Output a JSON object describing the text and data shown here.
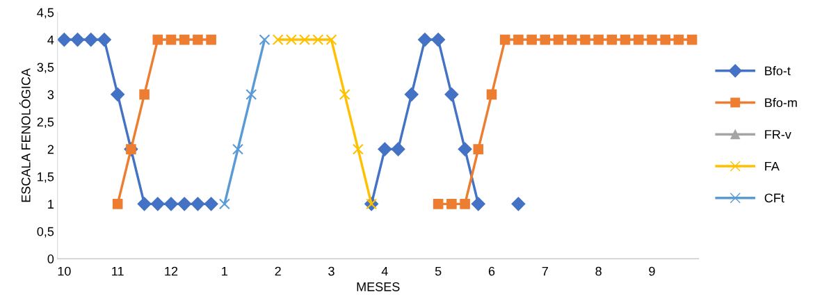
{
  "chart_data": {
    "type": "line",
    "xlabel": "MESES",
    "ylabel": "ESCALA FENOLÓGICA",
    "categories": [
      "10",
      null,
      null,
      null,
      "11",
      null,
      null,
      null,
      "12",
      null,
      null,
      null,
      "1",
      null,
      null,
      null,
      "2",
      null,
      null,
      null,
      "3",
      null,
      null,
      null,
      "4",
      null,
      null,
      null,
      "5",
      null,
      null,
      null,
      "6",
      null,
      null,
      null,
      "7",
      null,
      null,
      null,
      "8",
      null,
      null,
      null,
      "9",
      null,
      null,
      null
    ],
    "series": [
      {
        "name": "Bfo-t",
        "color": "#4472c4",
        "marker": "diamond",
        "values": [
          4,
          4,
          4,
          4,
          3,
          2,
          1,
          1,
          1,
          1,
          1,
          1,
          null,
          null,
          null,
          null,
          null,
          null,
          null,
          null,
          null,
          null,
          null,
          1,
          2,
          2,
          3,
          4,
          4,
          3,
          2,
          1,
          null,
          null,
          1,
          null,
          null,
          null,
          null,
          null,
          null,
          null,
          null,
          null,
          null,
          null,
          null,
          null
        ]
      },
      {
        "name": "Bfo-m",
        "color": "#ed7d31",
        "marker": "square",
        "values": [
          null,
          null,
          null,
          null,
          1,
          2,
          3,
          4,
          4,
          4,
          4,
          4,
          null,
          null,
          null,
          null,
          null,
          null,
          null,
          null,
          null,
          null,
          null,
          null,
          null,
          null,
          null,
          null,
          1,
          1,
          1,
          2,
          3,
          4,
          4,
          4,
          4,
          4,
          4,
          4,
          4,
          4,
          4,
          4,
          4,
          4,
          4,
          4
        ]
      },
      {
        "name": "FR-v",
        "color": "#a5a5a5",
        "marker": "triangle",
        "values": [
          null,
          null,
          null,
          null,
          null,
          null,
          null,
          null,
          null,
          null,
          null,
          null,
          null,
          null,
          null,
          null,
          null,
          null,
          null,
          null,
          null,
          null,
          null,
          null,
          null,
          null,
          null,
          null,
          null,
          null,
          null,
          null,
          null,
          null,
          null,
          null,
          null,
          null,
          null,
          null,
          null,
          null,
          null,
          null,
          null,
          null,
          null,
          null
        ]
      },
      {
        "name": "FA",
        "color": "#ffc000",
        "marker": "cross",
        "values": [
          null,
          null,
          null,
          null,
          null,
          null,
          null,
          null,
          null,
          null,
          null,
          null,
          null,
          null,
          null,
          null,
          4,
          4,
          4,
          4,
          4,
          3,
          2,
          1,
          null,
          null,
          null,
          null,
          null,
          null,
          null,
          null,
          null,
          null,
          null,
          null,
          null,
          null,
          null,
          null,
          null,
          null,
          null,
          null,
          null,
          null,
          null,
          null
        ]
      },
      {
        "name": "CFt",
        "color": "#5b9bd5",
        "marker": "cross",
        "values": [
          null,
          null,
          null,
          null,
          null,
          null,
          null,
          null,
          null,
          null,
          null,
          null,
          1,
          2,
          3,
          4,
          null,
          null,
          null,
          null,
          null,
          null,
          null,
          null,
          null,
          null,
          null,
          null,
          null,
          null,
          null,
          null,
          null,
          null,
          null,
          null,
          null,
          null,
          null,
          null,
          null,
          null,
          null,
          null,
          null,
          null,
          null,
          null
        ]
      }
    ],
    "ylim": [
      0,
      4.5
    ],
    "yticks": [
      {
        "value": 0,
        "label": "0"
      },
      {
        "value": 0.5,
        "label": "0,5"
      },
      {
        "value": 1,
        "label": "1"
      },
      {
        "value": 1.5,
        "label": "1,5"
      },
      {
        "value": 2,
        "label": "2"
      },
      {
        "value": 2.5,
        "label": "2,5"
      },
      {
        "value": 3,
        "label": "3"
      },
      {
        "value": 3.5,
        "label": "3,5"
      },
      {
        "value": 4,
        "label": "4"
      },
      {
        "value": 4.5,
        "label": "4,5"
      }
    ],
    "grid": false,
    "legend": "right",
    "line_style": "solid"
  }
}
